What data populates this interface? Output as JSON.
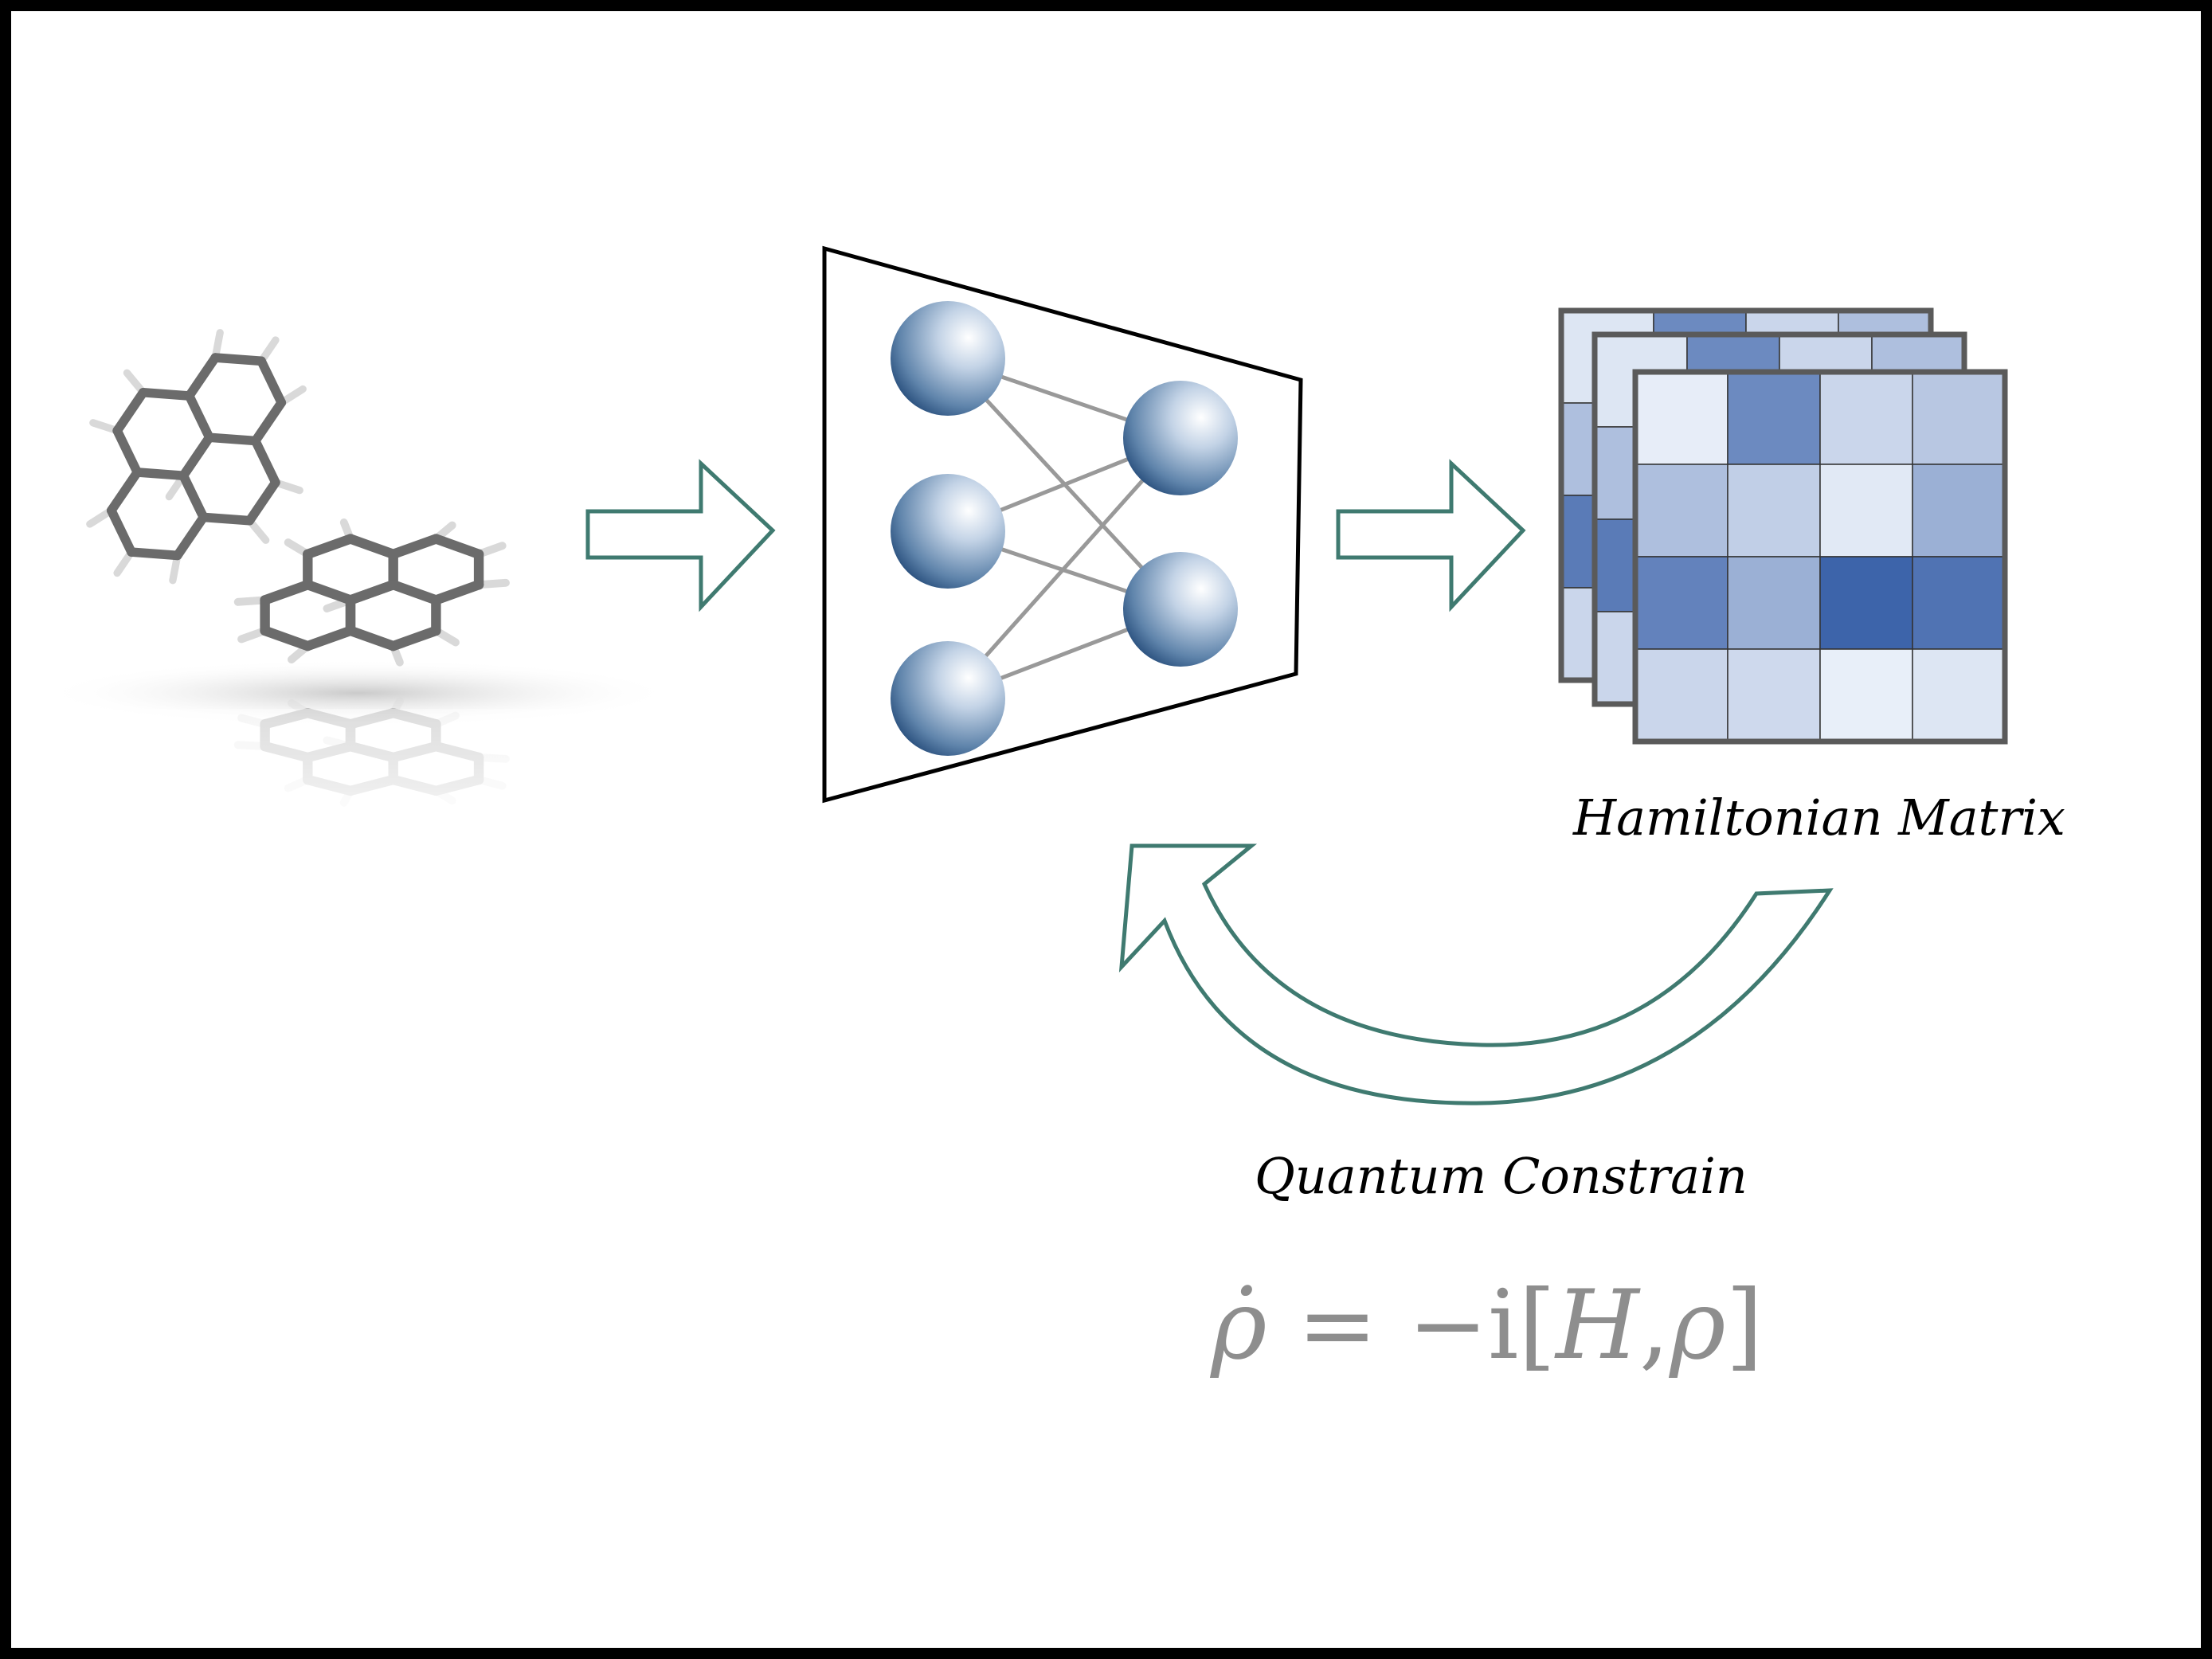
{
  "labels": {
    "hamiltonian": "Hamiltonian Matrix",
    "constraint": "Quantum Constrain"
  },
  "equation": {
    "lhs": "ρ̇",
    "equals": "=",
    "minus": "−",
    "imag": "i",
    "open": "[",
    "H": "H",
    "comma": ",",
    "rho": "ρ",
    "close": "]"
  },
  "colors": {
    "arrow_stroke": "#3f7a70",
    "node_fill": "#5f84ab",
    "edge": "#999999",
    "matrix_border": "#5a5a5a",
    "bond": "#6b6b6b",
    "hydrogen": "#d9d9d9",
    "equation": "#8e8e8e"
  },
  "matrix": {
    "rows": 4,
    "cols": 4,
    "front_intensity": [
      [
        0.05,
        0.7,
        0.2,
        0.3
      ],
      [
        0.35,
        0.25,
        0.08,
        0.45
      ],
      [
        0.75,
        0.45,
        0.95,
        0.85
      ],
      [
        0.2,
        0.18,
        0.04,
        0.1
      ]
    ],
    "back_top_row_intensity": [
      0.1,
      0.7,
      0.2,
      0.35
    ],
    "back_left_col_intensity": [
      0.35,
      0.8,
      0.2
    ]
  },
  "network": {
    "input_nodes": 3,
    "output_nodes": 2,
    "node_icon": "sphere-neuron-icon"
  },
  "molecules": {
    "icon": "polycyclic-aromatic-molecule-icon",
    "count": 2
  }
}
